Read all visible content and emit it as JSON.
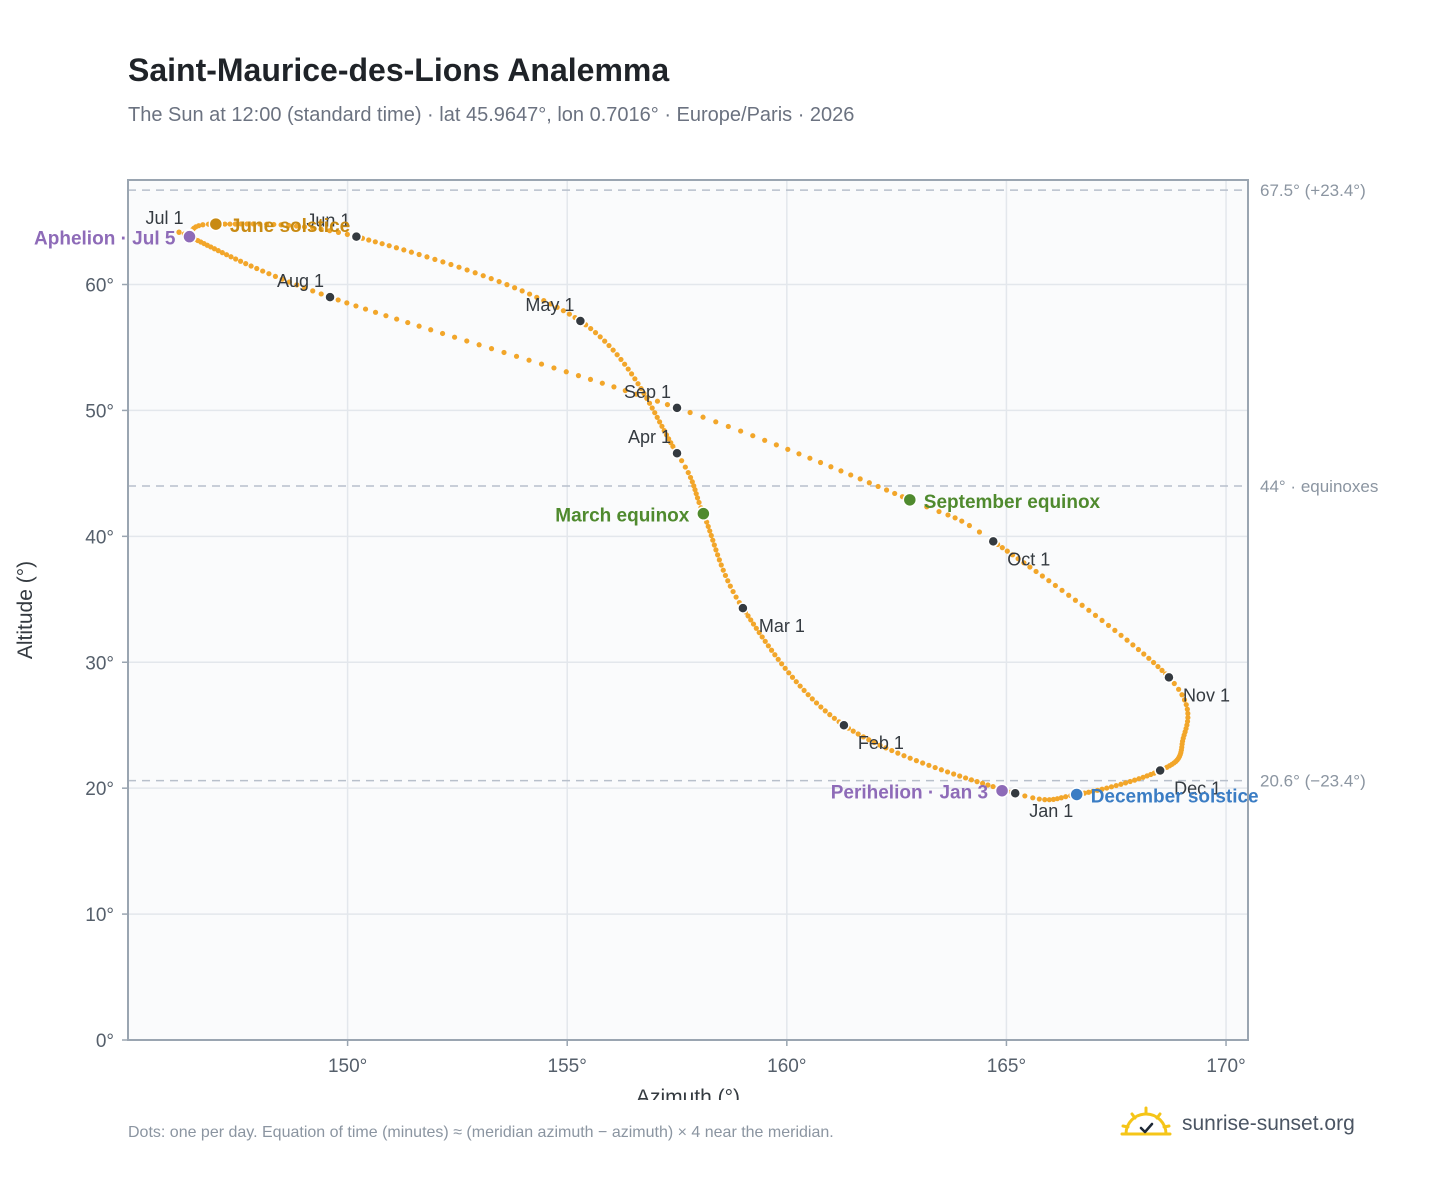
{
  "title": "Saint-Maurice-des-Lions Analemma",
  "subtitle": "The Sun at 12:00 (standard time) · lat 45.9647°, lon 0.7016° · Europe/Paris · 2026",
  "footnote": "Dots: one per day. Equation of time (minutes) ≈ (meridian azimuth − azimuth) × 4 near the meridian.",
  "brand": {
    "name": "sunrise-sunset.org",
    "icon": "sun-logo-icon"
  },
  "colors": {
    "path": "#f2a62a",
    "month_dot": "#343a40",
    "aphelion_perihelion": "#8e6bb8",
    "june_solstice": "#c88a12",
    "december_solstice": "#3b7dc4",
    "equinox": "#4f8a2e",
    "ref_line": "#b8c0cb",
    "grid": "#e3e7ec",
    "plot_bg": "#fafbfc",
    "axis": "#9aa5b1"
  },
  "chart_data": {
    "type": "scatter",
    "title": "Saint-Maurice-des-Lions Analemma",
    "xlabel": "Azimuth (°)",
    "ylabel": "Altitude (°)",
    "xlim": [
      145.0,
      170.5
    ],
    "ylim": [
      0,
      68.3
    ],
    "xticks": [
      150,
      155,
      160,
      165,
      170
    ],
    "xtick_labels": [
      "150°",
      "155°",
      "160°",
      "165°",
      "170°"
    ],
    "yticks": [
      0,
      10,
      20,
      30,
      40,
      50,
      60
    ],
    "ytick_labels": [
      "0°",
      "10°",
      "20°",
      "30°",
      "40°",
      "50°",
      "60°"
    ],
    "grid": true,
    "reference_lines": [
      {
        "y": 67.5,
        "label": "67.5° (+23.4°)"
      },
      {
        "y": 44.0,
        "label": "44° · equinoxes"
      },
      {
        "y": 20.6,
        "label": "20.6° (−23.4°)"
      }
    ],
    "path_anchors": [
      {
        "doy": 0,
        "x": 165.2,
        "y": 19.6
      },
      {
        "doy": 31,
        "x": 161.3,
        "y": 25.0
      },
      {
        "doy": 59,
        "x": 159.0,
        "y": 34.3
      },
      {
        "doy": 78,
        "x": 158.1,
        "y": 41.8
      },
      {
        "doy": 90,
        "x": 157.5,
        "y": 46.6
      },
      {
        "doy": 120,
        "x": 155.3,
        "y": 57.1
      },
      {
        "doy": 151,
        "x": 150.2,
        "y": 63.8
      },
      {
        "doy": 171,
        "x": 147.0,
        "y": 64.8
      },
      {
        "doy": 181,
        "x": 146.4,
        "y": 64.0
      },
      {
        "doy": 185,
        "x": 146.4,
        "y": 63.8
      },
      {
        "doy": 212,
        "x": 149.6,
        "y": 59.0
      },
      {
        "doy": 243,
        "x": 157.5,
        "y": 50.2
      },
      {
        "doy": 265,
        "x": 162.8,
        "y": 42.9
      },
      {
        "doy": 273,
        "x": 164.7,
        "y": 39.6
      },
      {
        "doy": 304,
        "x": 168.7,
        "y": 28.8
      },
      {
        "doy": 320,
        "x": 169.0,
        "y": 23.5
      },
      {
        "doy": 334,
        "x": 168.5,
        "y": 21.4
      },
      {
        "doy": 354,
        "x": 166.6,
        "y": 19.5
      },
      {
        "doy": 365,
        "x": 165.2,
        "y": 19.6
      }
    ],
    "month_markers": [
      {
        "label": "Jan 1",
        "x": 165.2,
        "y": 19.6,
        "pos": "below-right"
      },
      {
        "label": "Feb 1",
        "x": 161.3,
        "y": 25.0,
        "pos": "below-right"
      },
      {
        "label": "Mar 1",
        "x": 159.0,
        "y": 34.3,
        "pos": "right"
      },
      {
        "label": "Apr 1",
        "x": 157.5,
        "y": 46.6,
        "pos": "upper-left"
      },
      {
        "label": "May 1",
        "x": 155.3,
        "y": 57.1,
        "pos": "upper-left"
      },
      {
        "label": "Jun 1",
        "x": 150.2,
        "y": 63.8,
        "pos": "upper-left"
      },
      {
        "label": "Jul 1",
        "x": 146.4,
        "y": 64.0,
        "pos": "upper-left"
      },
      {
        "label": "Aug 1",
        "x": 149.6,
        "y": 59.0,
        "pos": "upper-left"
      },
      {
        "label": "Sep 1",
        "x": 157.5,
        "y": 50.2,
        "pos": "upper-left"
      },
      {
        "label": "Oct 1",
        "x": 164.7,
        "y": 39.6,
        "pos": "below-right"
      },
      {
        "label": "Nov 1",
        "x": 168.7,
        "y": 28.8,
        "pos": "below-right"
      },
      {
        "label": "Dec 1",
        "x": 168.5,
        "y": 21.4,
        "pos": "below-right"
      }
    ],
    "events": [
      {
        "label": "Aphelion · Jul 5",
        "x": 146.4,
        "y": 63.8,
        "color": "#8e6bb8",
        "pos": "left"
      },
      {
        "label": "June solstice",
        "x": 147.0,
        "y": 64.8,
        "color": "#c88a12",
        "pos": "right"
      },
      {
        "label": "March equinox",
        "x": 158.1,
        "y": 41.8,
        "color": "#4f8a2e",
        "pos": "left"
      },
      {
        "label": "September equinox",
        "x": 162.8,
        "y": 42.9,
        "color": "#4f8a2e",
        "pos": "right"
      },
      {
        "label": "Perihelion · Jan 3",
        "x": 164.9,
        "y": 19.8,
        "color": "#8e6bb8",
        "pos": "left"
      },
      {
        "label": "December solstice",
        "x": 166.6,
        "y": 19.5,
        "color": "#3b7dc4",
        "pos": "right"
      }
    ]
  }
}
